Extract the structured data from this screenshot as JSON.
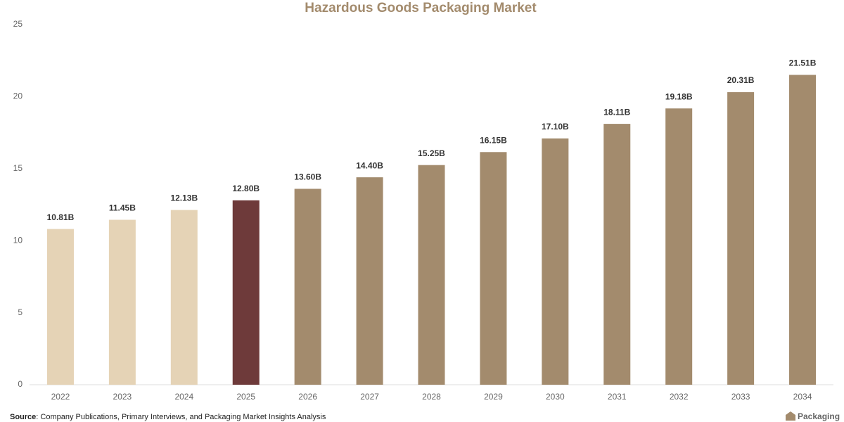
{
  "chart_data": {
    "type": "bar",
    "title": "Hazardous Goods Packaging Market",
    "categories": [
      "2022",
      "2023",
      "2024",
      "2025",
      "2026",
      "2027",
      "2028",
      "2029",
      "2030",
      "2031",
      "2032",
      "2033",
      "2034"
    ],
    "values": [
      10.81,
      11.45,
      12.13,
      12.8,
      13.6,
      14.4,
      15.25,
      16.15,
      17.1,
      18.11,
      19.18,
      20.31,
      21.51
    ],
    "value_labels": [
      "10.81B",
      "11.45B",
      "12.13B",
      "12.80B",
      "13.60B",
      "14.40B",
      "15.25B",
      "16.15B",
      "17.10B",
      "18.11B",
      "19.18B",
      "20.31B",
      "21.51B"
    ],
    "colors": [
      "#e5d3b6",
      "#e5d3b6",
      "#e5d3b6",
      "#6e3a3a",
      "#a38b6d",
      "#a38b6d",
      "#a38b6d",
      "#a38b6d",
      "#a38b6d",
      "#a38b6d",
      "#a38b6d",
      "#a38b6d",
      "#a38b6d"
    ],
    "ylim": [
      0,
      25
    ],
    "yticks": [
      0,
      5,
      10,
      15,
      20,
      25
    ],
    "grid": false
  },
  "footer": {
    "source_label": "Source",
    "source_text": ": Company Publications, Primary Interviews, and Packaging Market Insights Analysis",
    "logo_text": "Packaging"
  }
}
